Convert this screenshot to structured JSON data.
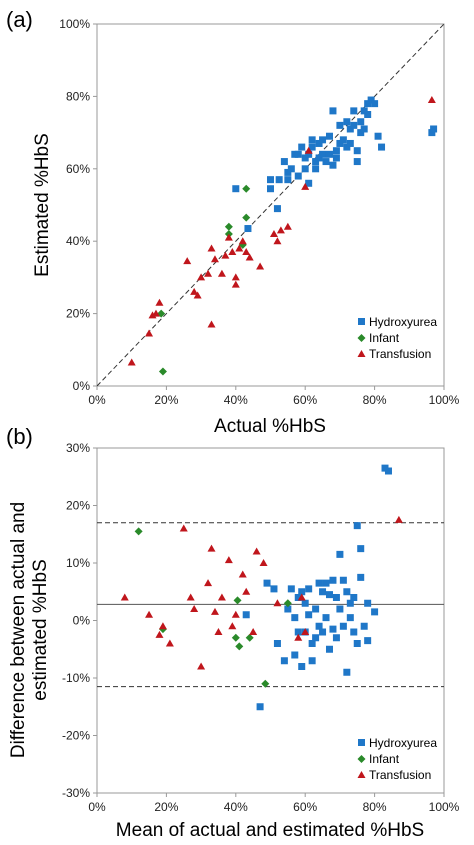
{
  "colors": {
    "hydroxyurea": "#1f77c8",
    "infant": "#2a8a2a",
    "transfusion": "#c0161c"
  },
  "chart_data": [
    {
      "type": "scatter",
      "panel_label": "(a)",
      "xlabel": "Actual %HbS",
      "ylabel": "Estimated %HbS",
      "xlim": [
        0,
        100
      ],
      "ylim": [
        0,
        100
      ],
      "xticks": [
        "0%",
        "20%",
        "40%",
        "60%",
        "80%",
        "100%"
      ],
      "yticks": [
        "0%",
        "20%",
        "40%",
        "60%",
        "80%",
        "100%"
      ],
      "identity_line": true,
      "legend_position": "bottom-right",
      "series": [
        {
          "name": "Hydroxyurea",
          "key": "hydroxyurea",
          "marker": "square",
          "color": "#1f77c8",
          "points": [
            [
              40,
              54.5
            ],
            [
              43.5,
              43.5
            ],
            [
              50,
              57
            ],
            [
              50,
              54.5
            ],
            [
              52,
              49
            ],
            [
              52.5,
              57
            ],
            [
              54,
              62
            ],
            [
              55,
              59
            ],
            [
              55,
              57
            ],
            [
              56,
              60
            ],
            [
              57,
              64
            ],
            [
              58,
              58
            ],
            [
              58,
              64
            ],
            [
              59,
              66
            ],
            [
              60,
              63
            ],
            [
              60,
              60
            ],
            [
              61,
              56
            ],
            [
              61,
              64
            ],
            [
              62,
              66
            ],
            [
              62,
              68
            ],
            [
              63,
              60
            ],
            [
              63,
              62
            ],
            [
              64,
              63
            ],
            [
              64,
              67
            ],
            [
              65,
              64
            ],
            [
              65,
              68
            ],
            [
              66,
              62
            ],
            [
              67,
              64
            ],
            [
              67,
              69
            ],
            [
              68,
              76
            ],
            [
              68,
              61
            ],
            [
              69,
              63
            ],
            [
              69,
              65
            ],
            [
              70,
              67
            ],
            [
              70,
              72
            ],
            [
              71,
              68
            ],
            [
              72,
              73
            ],
            [
              72,
              66
            ],
            [
              73,
              67
            ],
            [
              73,
              71
            ],
            [
              74,
              76
            ],
            [
              74,
              72
            ],
            [
              75,
              65
            ],
            [
              75,
              62
            ],
            [
              76,
              73
            ],
            [
              76,
              70
            ],
            [
              77,
              71
            ],
            [
              77,
              76
            ],
            [
              78,
              78
            ],
            [
              78,
              75
            ],
            [
              79,
              79
            ],
            [
              80,
              78
            ],
            [
              81,
              69
            ],
            [
              82,
              66
            ],
            [
              96.5,
              70
            ],
            [
              97,
              71
            ]
          ]
        },
        {
          "name": "Infant",
          "key": "infant",
          "marker": "diamond",
          "color": "#2a8a2a",
          "points": [
            [
              18.5,
              20
            ],
            [
              19,
              4
            ],
            [
              38,
              42
            ],
            [
              38,
              44
            ],
            [
              42,
              39
            ],
            [
              43,
              46.5
            ],
            [
              43,
              54.5
            ]
          ]
        },
        {
          "name": "Transfusion",
          "key": "transfusion",
          "marker": "triangle",
          "color": "#c0161c",
          "points": [
            [
              10,
              6.5
            ],
            [
              15,
              14.5
            ],
            [
              16,
              19.5
            ],
            [
              17,
              20
            ],
            [
              18,
              23
            ],
            [
              26,
              34.5
            ],
            [
              28,
              26
            ],
            [
              29,
              25
            ],
            [
              30,
              30
            ],
            [
              32,
              31
            ],
            [
              33,
              17
            ],
            [
              33,
              38
            ],
            [
              34,
              35
            ],
            [
              36,
              31
            ],
            [
              37,
              36
            ],
            [
              38,
              41
            ],
            [
              39,
              37
            ],
            [
              40,
              28
            ],
            [
              40,
              30
            ],
            [
              41,
              38
            ],
            [
              42,
              40
            ],
            [
              43,
              37
            ],
            [
              44,
              35.5
            ],
            [
              47,
              33
            ],
            [
              51,
              42
            ],
            [
              52,
              40
            ],
            [
              53,
              43
            ],
            [
              55,
              44
            ],
            [
              60,
              55
            ],
            [
              61,
              65
            ],
            [
              96.5,
              79
            ]
          ]
        }
      ]
    },
    {
      "type": "scatter",
      "panel_label": "(b)",
      "xlabel": "Mean of actual and estimated %HbS",
      "ylabel": "Difference between actual and estimated %HbS",
      "ylabel_lines": [
        "Difference between actual and",
        "estimated %HbS"
      ],
      "xlim": [
        0,
        100
      ],
      "ylim": [
        -30,
        30
      ],
      "xticks": [
        "0%",
        "20%",
        "40%",
        "60%",
        "80%",
        "100%"
      ],
      "yticks": [
        "-30%",
        "-20%",
        "-10%",
        "0%",
        "10%",
        "20%",
        "30%"
      ],
      "mean_line": 2.8,
      "limit_lines": [
        17,
        -11.5
      ],
      "legend_position": "bottom-right",
      "series": [
        {
          "name": "Hydroxyurea",
          "key": "hydroxyurea",
          "marker": "square",
          "color": "#1f77c8",
          "points": [
            [
              43,
              1
            ],
            [
              47,
              -15
            ],
            [
              49,
              6.5
            ],
            [
              51,
              5.5
            ],
            [
              52,
              -4
            ],
            [
              54,
              -7
            ],
            [
              55,
              2
            ],
            [
              56,
              5.5
            ],
            [
              57,
              0.5
            ],
            [
              57,
              -6
            ],
            [
              58,
              4
            ],
            [
              58,
              -2
            ],
            [
              59,
              5
            ],
            [
              59,
              -8
            ],
            [
              60,
              -2
            ],
            [
              60,
              3
            ],
            [
              61,
              1
            ],
            [
              61,
              5.5
            ],
            [
              62,
              -4
            ],
            [
              62,
              -7
            ],
            [
              63,
              2
            ],
            [
              63,
              -3
            ],
            [
              64,
              6.5
            ],
            [
              64,
              -1
            ],
            [
              65,
              5
            ],
            [
              65,
              -2
            ],
            [
              66,
              6.5
            ],
            [
              66,
              0.5
            ],
            [
              67,
              4.5
            ],
            [
              67,
              -5
            ],
            [
              68,
              -1.5
            ],
            [
              68,
              7
            ],
            [
              69,
              -3
            ],
            [
              69,
              4
            ],
            [
              70,
              11.5
            ],
            [
              70,
              2
            ],
            [
              71,
              7
            ],
            [
              71,
              -1
            ],
            [
              72,
              5
            ],
            [
              72,
              -9
            ],
            [
              73,
              3
            ],
            [
              73,
              0.5
            ],
            [
              74,
              -2
            ],
            [
              74,
              4
            ],
            [
              75,
              16.5
            ],
            [
              75,
              -4
            ],
            [
              76,
              12.5
            ],
            [
              76,
              7.5
            ],
            [
              77,
              -1
            ],
            [
              78,
              3
            ],
            [
              78,
              -3.5
            ],
            [
              80,
              1.5
            ],
            [
              83,
              26.5
            ],
            [
              84,
              26
            ]
          ]
        },
        {
          "name": "Infant",
          "key": "infant",
          "marker": "diamond",
          "color": "#2a8a2a",
          "points": [
            [
              12,
              15.5
            ],
            [
              19,
              -1.5
            ],
            [
              40,
              -3
            ],
            [
              40.5,
              3.5
            ],
            [
              41,
              -4.5
            ],
            [
              44,
              -3
            ],
            [
              55,
              3
            ],
            [
              48.5,
              -11
            ]
          ]
        },
        {
          "name": "Transfusion",
          "key": "transfusion",
          "marker": "triangle",
          "color": "#c0161c",
          "points": [
            [
              8,
              4
            ],
            [
              15,
              1
            ],
            [
              18,
              -2.5
            ],
            [
              19,
              -1
            ],
            [
              21,
              -4
            ],
            [
              25,
              16
            ],
            [
              27,
              4
            ],
            [
              28,
              2
            ],
            [
              30,
              -8
            ],
            [
              32,
              6.5
            ],
            [
              33,
              12.5
            ],
            [
              34,
              1.5
            ],
            [
              35,
              -2
            ],
            [
              36,
              4
            ],
            [
              38,
              10.5
            ],
            [
              39,
              -1
            ],
            [
              40,
              1
            ],
            [
              42,
              8
            ],
            [
              43,
              5
            ],
            [
              45,
              -2
            ],
            [
              46,
              12
            ],
            [
              48,
              10
            ],
            [
              52,
              3
            ],
            [
              58,
              -3
            ],
            [
              59,
              4
            ],
            [
              60,
              -2
            ],
            [
              87,
              17.5
            ]
          ]
        }
      ]
    }
  ]
}
